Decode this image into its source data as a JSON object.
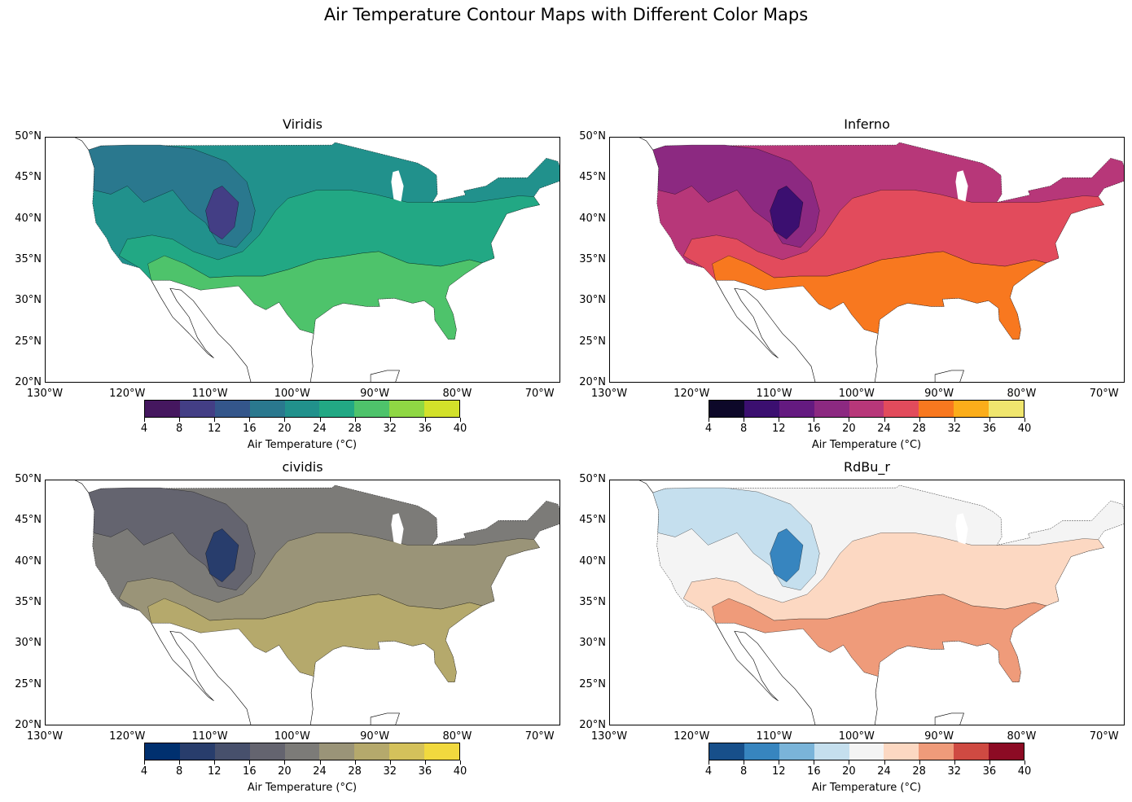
{
  "figure": {
    "title": "Air Temperature Contour Maps with Different Color Maps"
  },
  "axes_ticks": {
    "lat": [
      "50°N",
      "45°N",
      "40°N",
      "35°N",
      "30°N",
      "25°N",
      "20°N"
    ],
    "lon": [
      "130°W",
      "120°W",
      "110°W",
      "100°W",
      "90°W",
      "80°W",
      "70°W"
    ]
  },
  "colorbar": {
    "label": "Air Temperature (°C)",
    "ticks": [
      "4",
      "8",
      "12",
      "16",
      "20",
      "24",
      "28",
      "32",
      "36",
      "40"
    ]
  },
  "panels": [
    {
      "title": "Viridis",
      "colors": [
        "#45175f",
        "#433e85",
        "#34568b",
        "#2a788e",
        "#21918c",
        "#22a884",
        "#4ec36b",
        "#8fd744",
        "#d3e12a"
      ]
    },
    {
      "title": "Inferno",
      "colors": [
        "#0d0829",
        "#3b0f70",
        "#641a80",
        "#8c2981",
        "#b73779",
        "#e24b5c",
        "#f8781f",
        "#fbad1a",
        "#f0e66e"
      ]
    },
    {
      "title": "cividis",
      "colors": [
        "#00306f",
        "#283d6c",
        "#47506c",
        "#64646f",
        "#7c7b78",
        "#9a9478",
        "#b5a96c",
        "#d4c15b",
        "#f1d93e"
      ]
    },
    {
      "title": "RdBu_r",
      "colors": [
        "#174f8a",
        "#3785bf",
        "#7ab4d9",
        "#c5dfee",
        "#f4f4f4",
        "#fcd8c2",
        "#ef9b7a",
        "#cf4a42",
        "#8c0b24"
      ]
    }
  ],
  "map_extent": {
    "lon_min": -130,
    "lon_max": -67.5,
    "lat_min": 20,
    "lat_max": 50
  }
}
